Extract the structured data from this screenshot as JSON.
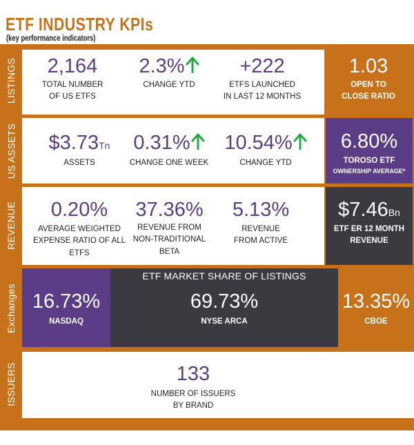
{
  "header": {
    "title": "ETF INDUSTRY  KPIs",
    "subtitle": "(key performance indicators)"
  },
  "listings": {
    "side_label": "LISTINGS",
    "total": {
      "value": "2,164",
      "label1": "TOTAL NUMBER",
      "label2": "OF  US ETFs"
    },
    "change_ytd": {
      "value": "2.3%",
      "label": "CHANGE YTD",
      "arrow": "up-arrow-icon"
    },
    "launched": {
      "value": "+222",
      "label1": "ETFs LAUNCHED",
      "label2": "IN LAST 12 MONTHS"
    },
    "ratio": {
      "value": "1.03",
      "label1": "OPEN TO",
      "label2": "CLOSE RATIO"
    }
  },
  "us_assets": {
    "side_label": "US ASSETS",
    "assets": {
      "value": "$3.73",
      "unit": "Tn",
      "label": "ASSETS"
    },
    "change_week": {
      "value": "0.31%",
      "label": "CHANGE ONE WEEK",
      "arrow": "up-arrow-icon"
    },
    "change_ytd": {
      "value": "10.54%",
      "label": "CHANGE YTD",
      "arrow": "up-arrow-icon"
    },
    "toroso": {
      "value": "6.80%",
      "label1": "TOROSO ETF",
      "label2": "OWNERSHIP AVERAGE*"
    }
  },
  "revenue": {
    "side_label": "REVENUE",
    "expense_ratio": {
      "value": "0.20%",
      "label1": "AVERAGE WEIGHTED",
      "label2": "EXPENSE RATIO OF ALL",
      "label3": "ETFS"
    },
    "non_traditional": {
      "value": "37.36%",
      "label1": "REVENUE FROM",
      "label2": "NON-TRADITIONAL BETA"
    },
    "active": {
      "value": "5.13%",
      "label1": "REVENUE",
      "label2": "FROM ACTIVE"
    },
    "er_revenue": {
      "value": "$7.46",
      "unit": "Bn",
      "label1": "ETF ER 12 MONTH",
      "label2": "REVENUE"
    }
  },
  "exchanges": {
    "side_label": "Exchanges",
    "market_share_title": "ETF MARKET SHARE OF LISTINGS",
    "nasdaq": {
      "value": "16.73%",
      "label": "NASDAQ"
    },
    "nyse": {
      "value": "69.73%",
      "label": "NYSE ARCA"
    },
    "cboe": {
      "value": "13.35%",
      "label": "CBOE"
    }
  },
  "issuers": {
    "side_label": "ISSUERS",
    "count": {
      "value": "133",
      "label1": "NUMBER OF ISSUERS",
      "label2": "BY BRAND"
    }
  },
  "colors": {
    "orange": "#c8711b",
    "purple": "#5b3c86",
    "charcoal": "#3a3a40",
    "green_arrow": "#27a844"
  }
}
